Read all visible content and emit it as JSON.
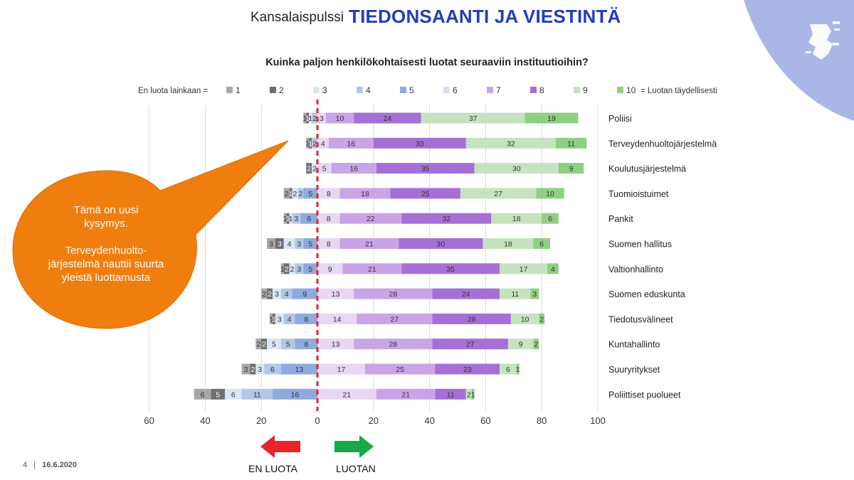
{
  "header": {
    "pre": "Kansalaispulssi",
    "main": "TIEDONSAANTI JA VIESTINTÄ"
  },
  "title": "Kuinka paljon henkilökohtaisesti luotat seuraaviin instituutioihin?",
  "legend": {
    "prefix": "En luota lainkaan =",
    "suffix": "= Luotan täydellisesti",
    "items": [
      "1",
      "2",
      "3",
      "4",
      "5",
      "6",
      "7",
      "8",
      "9",
      "10"
    ]
  },
  "callout": {
    "line1": "Tämä on uusi kysymys.",
    "line2": "Terveydenhuolto-järjestelmä nauttii suurta yleistä luottamusta",
    "color": "#f07e0e"
  },
  "arrows": {
    "left_label": "EN LUOTA",
    "right_label": "LUOTAN",
    "left_color": "#e8232a",
    "right_color": "#18a84a"
  },
  "footer": {
    "page": "4",
    "sep": "|",
    "date": "16.6.2020"
  },
  "chart_data": {
    "type": "bar",
    "orientation": "horizontal",
    "stacked": "diverging",
    "x_ticks": [
      "60",
      "40",
      "20",
      "0",
      "20",
      "40",
      "60",
      "80",
      "100"
    ],
    "xlim": [
      -60,
      100
    ],
    "grid": true,
    "legend_position": "top",
    "colors": [
      "#a6a6a6",
      "#6f6f6f",
      "#dbe5f5",
      "#b4c7e7",
      "#8faadc",
      "#e7d7f3",
      "#c9a4e6",
      "#a66fd5",
      "#c6e3bf",
      "#8fcf81"
    ],
    "categories": [
      "Poliisi",
      "Terveydenhuoltojärjestelmä",
      "Koulutusjärjestelmä",
      "Tuomioistuimet",
      "Pankit",
      "Suomen hallitus",
      "Valtionhallinto",
      "Suomen eduskunta",
      "Tiedotusvälineet",
      "Kuntahallinto",
      "Suuryritykset",
      "Poliittiset puolueet"
    ],
    "series": [
      {
        "name": "1",
        "values": [
          1,
          1,
          0,
          2,
          1,
          3,
          1,
          2,
          1,
          2,
          3,
          6
        ]
      },
      {
        "name": "2",
        "values": [
          1,
          1,
          2,
          1,
          1,
          3,
          2,
          2,
          1,
          2,
          2,
          5
        ]
      },
      {
        "name": "3",
        "values": [
          1,
          0,
          2,
          2,
          1,
          4,
          2,
          3,
          3,
          5,
          3,
          6
        ]
      },
      {
        "name": "4",
        "values": [
          2,
          2,
          0,
          2,
          3,
          3,
          3,
          4,
          4,
          5,
          6,
          11
        ]
      },
      {
        "name": "5",
        "values": [
          0,
          0,
          0,
          5,
          6,
          5,
          5,
          9,
          8,
          8,
          13,
          16
        ]
      },
      {
        "name": "6",
        "values": [
          3,
          4,
          5,
          8,
          8,
          8,
          9,
          13,
          14,
          13,
          17,
          21
        ]
      },
      {
        "name": "7",
        "values": [
          10,
          16,
          16,
          18,
          22,
          21,
          21,
          28,
          27,
          28,
          25,
          21
        ]
      },
      {
        "name": "8",
        "values": [
          24,
          33,
          35,
          25,
          32,
          30,
          35,
          24,
          28,
          27,
          23,
          11
        ]
      },
      {
        "name": "9",
        "values": [
          37,
          32,
          30,
          27,
          18,
          18,
          17,
          11,
          10,
          9,
          6,
          2
        ]
      },
      {
        "name": "10",
        "values": [
          19,
          11,
          9,
          10,
          6,
          6,
          4,
          3,
          2,
          2,
          1,
          1
        ]
      }
    ]
  }
}
